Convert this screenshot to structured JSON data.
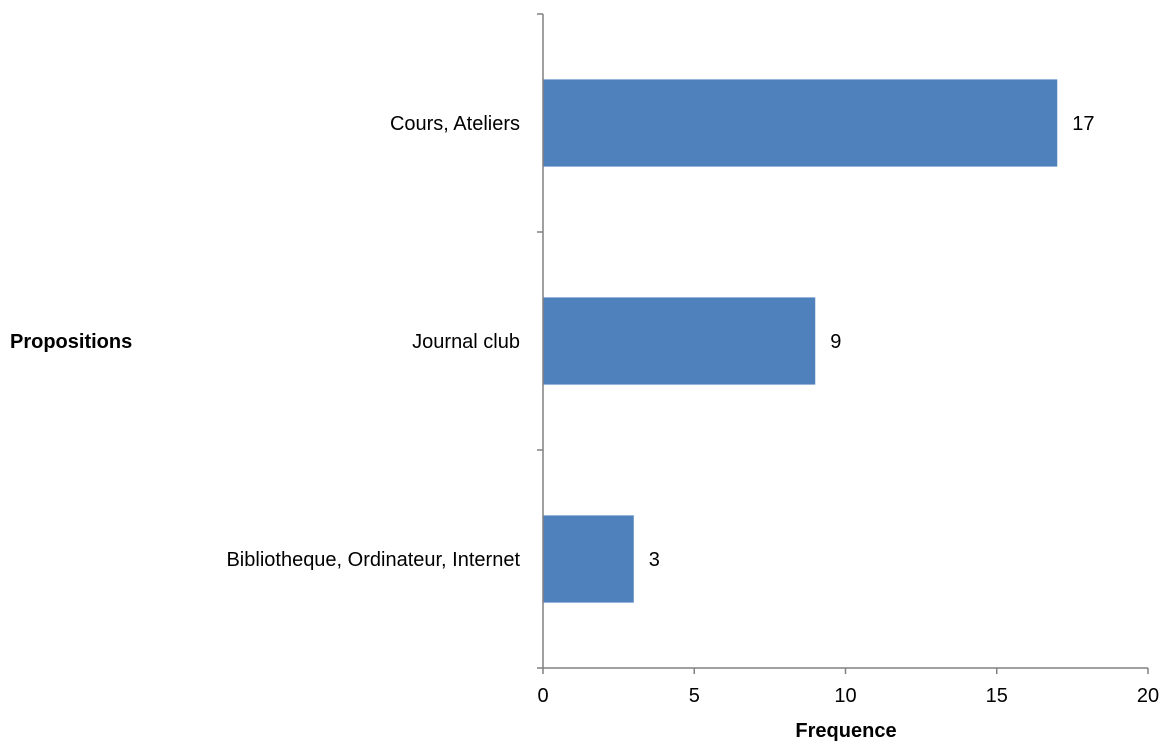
{
  "chart_data": {
    "type": "bar",
    "orientation": "horizontal",
    "categories": [
      "Cours, Ateliers",
      "Journal club",
      "Bibliotheque, Ordinateur, Internet"
    ],
    "values": [
      17,
      9,
      3
    ],
    "data_labels": [
      "17",
      "9",
      "3"
    ],
    "xlabel": "Frequence",
    "ylabel": "Propositions",
    "xlim": [
      0,
      20
    ],
    "x_ticks": [
      "0",
      "5",
      "10",
      "15",
      "20"
    ],
    "grid": false,
    "bar_color": "#4F81BD"
  }
}
